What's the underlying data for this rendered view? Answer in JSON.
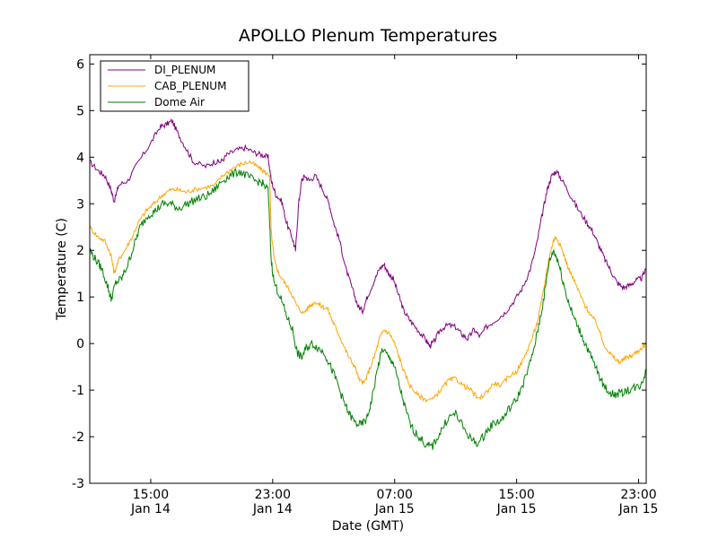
{
  "chart_data": {
    "type": "line",
    "title": "APOLLO Plenum Temperatures",
    "xlabel": "Date (GMT)",
    "ylabel": "Temperature (C)",
    "xlim_hours": [
      11.0,
      47.5
    ],
    "ylim": [
      -3,
      6.2
    ],
    "y_ticks": [
      {
        "value": -3,
        "label": "-3"
      },
      {
        "value": -2,
        "label": "-2"
      },
      {
        "value": -1,
        "label": "-1"
      },
      {
        "value": 0,
        "label": "0"
      },
      {
        "value": 1,
        "label": "1"
      },
      {
        "value": 2,
        "label": "2"
      },
      {
        "value": 3,
        "label": "3"
      },
      {
        "value": 4,
        "label": "4"
      },
      {
        "value": 5,
        "label": "5"
      },
      {
        "value": 6,
        "label": "6"
      }
    ],
    "x_ticks": [
      {
        "hours": 15,
        "time": "15:00",
        "date": "Jan 14"
      },
      {
        "hours": 23,
        "time": "23:00",
        "date": "Jan 14"
      },
      {
        "hours": 31,
        "time": "07:00",
        "date": "Jan 15"
      },
      {
        "hours": 39,
        "time": "15:00",
        "date": "Jan 15"
      },
      {
        "hours": 47,
        "time": "23:00",
        "date": "Jan 15"
      }
    ],
    "legend_position": "top-left",
    "series": [
      {
        "name": "DI_PLENUM",
        "color": "#800080",
        "points": [
          [
            11.0,
            3.9
          ],
          [
            11.6,
            3.7
          ],
          [
            12.0,
            3.6
          ],
          [
            12.4,
            3.3
          ],
          [
            12.6,
            3.05
          ],
          [
            12.9,
            3.4
          ],
          [
            13.5,
            3.5
          ],
          [
            14.2,
            3.9
          ],
          [
            15.0,
            4.3
          ],
          [
            15.6,
            4.65
          ],
          [
            16.0,
            4.7
          ],
          [
            16.4,
            4.78
          ],
          [
            16.8,
            4.5
          ],
          [
            17.3,
            4.2
          ],
          [
            17.8,
            3.9
          ],
          [
            18.6,
            3.8
          ],
          [
            19.2,
            3.9
          ],
          [
            19.6,
            3.9
          ],
          [
            20.0,
            4.05
          ],
          [
            20.6,
            4.15
          ],
          [
            21.2,
            4.2
          ],
          [
            21.8,
            4.1
          ],
          [
            22.3,
            4.05
          ],
          [
            22.7,
            4.0
          ],
          [
            22.9,
            3.5
          ],
          [
            23.2,
            3.2
          ],
          [
            23.6,
            3.05
          ],
          [
            23.9,
            2.6
          ],
          [
            24.3,
            2.25
          ],
          [
            24.5,
            2.0
          ],
          [
            24.7,
            3.0
          ],
          [
            24.9,
            3.5
          ],
          [
            25.1,
            3.6
          ],
          [
            25.4,
            3.5
          ],
          [
            25.8,
            3.6
          ],
          [
            26.3,
            3.3
          ],
          [
            26.7,
            3.0
          ],
          [
            27.0,
            2.6
          ],
          [
            27.4,
            2.2
          ],
          [
            27.8,
            1.6
          ],
          [
            28.2,
            1.2
          ],
          [
            28.6,
            0.8
          ],
          [
            28.9,
            0.7
          ],
          [
            29.2,
            1.0
          ],
          [
            29.6,
            1.3
          ],
          [
            30.0,
            1.6
          ],
          [
            30.3,
            1.7
          ],
          [
            30.6,
            1.5
          ],
          [
            30.9,
            1.4
          ],
          [
            31.3,
            1.0
          ],
          [
            31.6,
            0.7
          ],
          [
            32.0,
            0.5
          ],
          [
            32.5,
            0.3
          ],
          [
            33.0,
            0.1
          ],
          [
            33.3,
            -0.05
          ],
          [
            33.6,
            0.05
          ],
          [
            34.0,
            0.3
          ],
          [
            34.5,
            0.4
          ],
          [
            35.0,
            0.35
          ],
          [
            35.4,
            0.2
          ],
          [
            35.8,
            0.1
          ],
          [
            36.2,
            0.3
          ],
          [
            36.6,
            0.15
          ],
          [
            37.0,
            0.35
          ],
          [
            37.6,
            0.5
          ],
          [
            38.2,
            0.65
          ],
          [
            38.8,
            0.9
          ],
          [
            39.4,
            1.2
          ],
          [
            39.9,
            1.6
          ],
          [
            40.3,
            2.1
          ],
          [
            40.7,
            2.8
          ],
          [
            41.0,
            3.3
          ],
          [
            41.3,
            3.6
          ],
          [
            41.6,
            3.7
          ],
          [
            42.0,
            3.5
          ],
          [
            42.5,
            3.2
          ],
          [
            43.0,
            2.9
          ],
          [
            43.6,
            2.6
          ],
          [
            44.0,
            2.4
          ],
          [
            44.4,
            2.1
          ],
          [
            44.8,
            1.8
          ],
          [
            45.2,
            1.55
          ],
          [
            45.6,
            1.3
          ],
          [
            46.0,
            1.2
          ],
          [
            46.4,
            1.25
          ],
          [
            46.8,
            1.35
          ],
          [
            47.2,
            1.4
          ],
          [
            47.5,
            1.6
          ]
        ]
      },
      {
        "name": "CAB_PLENUM",
        "color": "#ffa500",
        "points": [
          [
            11.0,
            2.5
          ],
          [
            11.5,
            2.3
          ],
          [
            12.0,
            2.2
          ],
          [
            12.4,
            1.9
          ],
          [
            12.6,
            1.5
          ],
          [
            12.9,
            1.8
          ],
          [
            13.3,
            2.0
          ],
          [
            13.8,
            2.3
          ],
          [
            14.2,
            2.6
          ],
          [
            14.7,
            2.85
          ],
          [
            15.2,
            3.0
          ],
          [
            15.8,
            3.2
          ],
          [
            16.3,
            3.3
          ],
          [
            16.8,
            3.3
          ],
          [
            17.3,
            3.25
          ],
          [
            17.8,
            3.3
          ],
          [
            18.5,
            3.35
          ],
          [
            19.2,
            3.4
          ],
          [
            19.7,
            3.6
          ],
          [
            20.3,
            3.75
          ],
          [
            20.9,
            3.85
          ],
          [
            21.5,
            3.9
          ],
          [
            22.0,
            3.8
          ],
          [
            22.4,
            3.7
          ],
          [
            22.8,
            3.6
          ],
          [
            22.9,
            2.4
          ],
          [
            23.1,
            1.8
          ],
          [
            23.4,
            1.5
          ],
          [
            23.8,
            1.3
          ],
          [
            24.2,
            1.1
          ],
          [
            24.6,
            0.8
          ],
          [
            25.0,
            0.65
          ],
          [
            25.4,
            0.8
          ],
          [
            25.8,
            0.9
          ],
          [
            26.2,
            0.8
          ],
          [
            26.6,
            0.75
          ],
          [
            26.9,
            0.5
          ],
          [
            27.2,
            0.3
          ],
          [
            27.6,
            0.0
          ],
          [
            28.0,
            -0.3
          ],
          [
            28.4,
            -0.5
          ],
          [
            28.7,
            -0.8
          ],
          [
            29.0,
            -0.85
          ],
          [
            29.3,
            -0.6
          ],
          [
            29.7,
            -0.25
          ],
          [
            30.0,
            0.1
          ],
          [
            30.3,
            0.3
          ],
          [
            30.7,
            0.2
          ],
          [
            31.0,
            0.0
          ],
          [
            31.3,
            -0.3
          ],
          [
            31.6,
            -0.6
          ],
          [
            32.0,
            -0.9
          ],
          [
            32.5,
            -1.1
          ],
          [
            33.0,
            -1.2
          ],
          [
            33.5,
            -1.2
          ],
          [
            34.0,
            -1.0
          ],
          [
            34.5,
            -0.8
          ],
          [
            35.0,
            -0.75
          ],
          [
            35.5,
            -0.9
          ],
          [
            36.0,
            -1.0
          ],
          [
            36.5,
            -1.2
          ],
          [
            37.0,
            -1.05
          ],
          [
            37.5,
            -0.85
          ],
          [
            38.0,
            -0.9
          ],
          [
            38.5,
            -0.7
          ],
          [
            39.0,
            -0.6
          ],
          [
            39.5,
            -0.3
          ],
          [
            40.0,
            0.1
          ],
          [
            40.4,
            0.5
          ],
          [
            40.8,
            1.2
          ],
          [
            41.1,
            1.8
          ],
          [
            41.4,
            2.2
          ],
          [
            41.6,
            2.3
          ],
          [
            42.0,
            2.0
          ],
          [
            42.3,
            1.7
          ],
          [
            42.7,
            1.4
          ],
          [
            43.1,
            1.1
          ],
          [
            43.5,
            0.8
          ],
          [
            43.9,
            0.6
          ],
          [
            44.3,
            0.4
          ],
          [
            44.7,
            0.0
          ],
          [
            45.1,
            -0.2
          ],
          [
            45.5,
            -0.35
          ],
          [
            45.8,
            -0.4
          ],
          [
            46.2,
            -0.3
          ],
          [
            46.6,
            -0.25
          ],
          [
            47.0,
            -0.15
          ],
          [
            47.5,
            0.0
          ]
        ]
      },
      {
        "name": "Dome Air",
        "color": "#008000",
        "points": [
          [
            11.0,
            2.0
          ],
          [
            11.4,
            1.8
          ],
          [
            11.8,
            1.6
          ],
          [
            12.2,
            1.2
          ],
          [
            12.4,
            0.95
          ],
          [
            12.7,
            1.3
          ],
          [
            13.1,
            1.4
          ],
          [
            13.5,
            1.7
          ],
          [
            13.9,
            2.1
          ],
          [
            14.3,
            2.5
          ],
          [
            14.8,
            2.75
          ],
          [
            15.3,
            2.85
          ],
          [
            15.8,
            3.0
          ],
          [
            16.3,
            3.0
          ],
          [
            16.8,
            2.9
          ],
          [
            17.4,
            3.0
          ],
          [
            18.0,
            3.1
          ],
          [
            18.6,
            3.15
          ],
          [
            19.2,
            3.3
          ],
          [
            19.7,
            3.5
          ],
          [
            20.2,
            3.6
          ],
          [
            20.8,
            3.7
          ],
          [
            21.3,
            3.6
          ],
          [
            21.8,
            3.5
          ],
          [
            22.3,
            3.45
          ],
          [
            22.7,
            3.3
          ],
          [
            22.9,
            1.8
          ],
          [
            23.1,
            1.3
          ],
          [
            23.5,
            1.0
          ],
          [
            23.9,
            0.6
          ],
          [
            24.3,
            0.3
          ],
          [
            24.6,
            -0.2
          ],
          [
            24.9,
            -0.3
          ],
          [
            25.2,
            -0.1
          ],
          [
            25.6,
            0.0
          ],
          [
            26.0,
            -0.1
          ],
          [
            26.4,
            -0.2
          ],
          [
            26.8,
            -0.5
          ],
          [
            27.2,
            -0.8
          ],
          [
            27.6,
            -1.2
          ],
          [
            28.0,
            -1.5
          ],
          [
            28.4,
            -1.7
          ],
          [
            28.8,
            -1.75
          ],
          [
            29.2,
            -1.6
          ],
          [
            29.5,
            -1.2
          ],
          [
            29.9,
            -0.5
          ],
          [
            30.2,
            -0.1
          ],
          [
            30.6,
            -0.3
          ],
          [
            30.9,
            -0.4
          ],
          [
            31.3,
            -0.9
          ],
          [
            31.7,
            -1.4
          ],
          [
            32.1,
            -1.8
          ],
          [
            32.6,
            -2.0
          ],
          [
            33.1,
            -2.2
          ],
          [
            33.5,
            -2.2
          ],
          [
            34.0,
            -1.9
          ],
          [
            34.5,
            -1.6
          ],
          [
            35.0,
            -1.5
          ],
          [
            35.5,
            -1.8
          ],
          [
            36.0,
            -2.05
          ],
          [
            36.5,
            -2.15
          ],
          [
            37.0,
            -1.9
          ],
          [
            37.5,
            -1.7
          ],
          [
            38.0,
            -1.65
          ],
          [
            38.5,
            -1.4
          ],
          [
            39.0,
            -1.2
          ],
          [
            39.5,
            -0.8
          ],
          [
            40.0,
            -0.3
          ],
          [
            40.4,
            0.3
          ],
          [
            40.8,
            1.0
          ],
          [
            41.1,
            1.7
          ],
          [
            41.4,
            2.0
          ],
          [
            41.7,
            1.8
          ],
          [
            42.0,
            1.4
          ],
          [
            42.3,
            1.0
          ],
          [
            42.7,
            0.6
          ],
          [
            43.1,
            0.3
          ],
          [
            43.5,
            0.0
          ],
          [
            43.9,
            -0.3
          ],
          [
            44.3,
            -0.6
          ],
          [
            44.7,
            -0.9
          ],
          [
            45.1,
            -1.05
          ],
          [
            45.5,
            -1.1
          ],
          [
            45.9,
            -1.05
          ],
          [
            46.3,
            -1.0
          ],
          [
            46.7,
            -0.95
          ],
          [
            47.1,
            -0.9
          ],
          [
            47.5,
            -0.6
          ]
        ]
      }
    ]
  }
}
